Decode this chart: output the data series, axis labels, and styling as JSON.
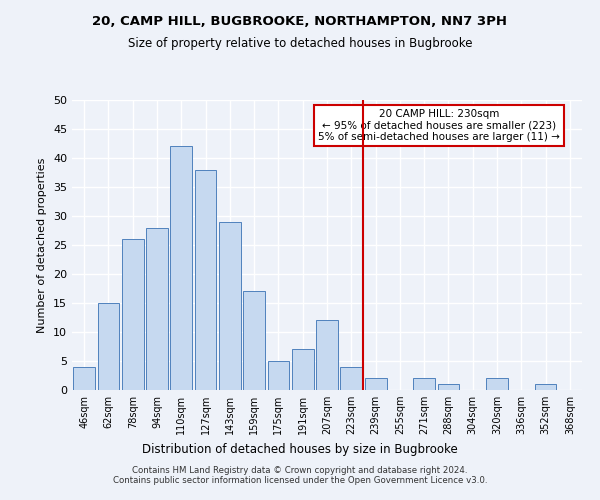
{
  "title": "20, CAMP HILL, BUGBROOKE, NORTHAMPTON, NN7 3PH",
  "subtitle": "Size of property relative to detached houses in Bugbrooke",
  "xlabel": "Distribution of detached houses by size in Bugbrooke",
  "ylabel": "Number of detached properties",
  "bar_color": "#c6d9f0",
  "bar_edge_color": "#4f81bd",
  "categories": [
    "46sqm",
    "62sqm",
    "78sqm",
    "94sqm",
    "110sqm",
    "127sqm",
    "143sqm",
    "159sqm",
    "175sqm",
    "191sqm",
    "207sqm",
    "223sqm",
    "239sqm",
    "255sqm",
    "271sqm",
    "288sqm",
    "304sqm",
    "320sqm",
    "336sqm",
    "352sqm",
    "368sqm"
  ],
  "values": [
    4,
    15,
    26,
    28,
    42,
    38,
    29,
    17,
    5,
    7,
    12,
    4,
    2,
    0,
    2,
    1,
    0,
    2,
    0,
    1,
    0
  ],
  "ylim": [
    0,
    50
  ],
  "yticks": [
    0,
    5,
    10,
    15,
    20,
    25,
    30,
    35,
    40,
    45,
    50
  ],
  "vline_x": 11.5,
  "vline_color": "#cc0000",
  "annotation_text": "20 CAMP HILL: 230sqm\n← 95% of detached houses are smaller (223)\n5% of semi-detached houses are larger (11) →",
  "annotation_box_edge": "#cc0000",
  "footer1": "Contains HM Land Registry data © Crown copyright and database right 2024.",
  "footer2": "Contains public sector information licensed under the Open Government Licence v3.0.",
  "background_color": "#eef2f9",
  "grid_color": "#ffffff"
}
